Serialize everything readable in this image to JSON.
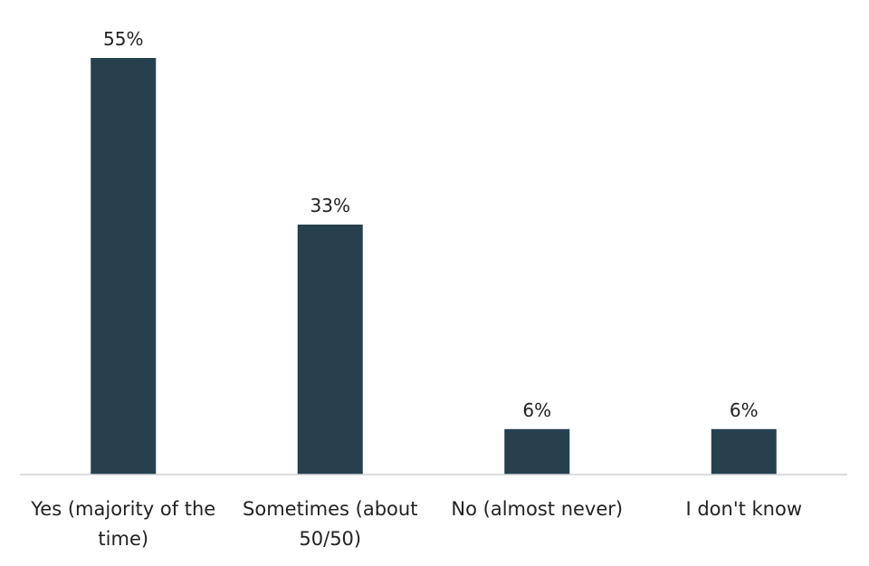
{
  "chart_data": {
    "type": "bar",
    "categories": [
      "Yes (majority of the time)",
      "Sometimes (about 50/50)",
      "No (almost never)",
      "I don't know"
    ],
    "values": [
      55,
      33,
      6,
      6
    ],
    "value_labels": [
      "55%",
      "33%",
      "6%",
      "6%"
    ],
    "unit": "%",
    "title": "",
    "xlabel": "",
    "ylabel": "",
    "ylim": [
      0,
      55
    ],
    "grid": false,
    "legend": "none",
    "bar_color": "#26404e",
    "axis_color": "#d0d0d0"
  }
}
